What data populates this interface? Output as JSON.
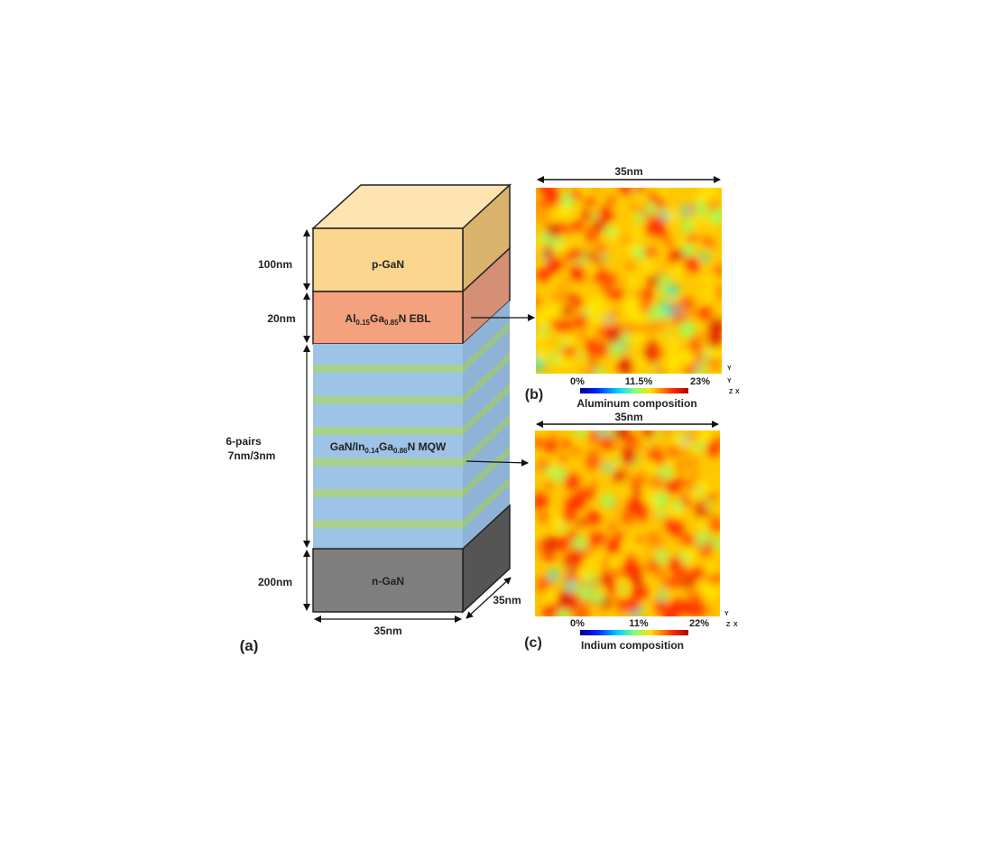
{
  "panel_a": {
    "label": "(a)",
    "layers": [
      {
        "name": "p-GaN",
        "thickness": "100nm",
        "color": "#fcd68e"
      },
      {
        "name_parts": [
          "Al",
          "0.15",
          "Ga",
          "0.85",
          "N EBL"
        ],
        "thickness": "20nm",
        "color": "#f4a27e"
      },
      {
        "name_parts": [
          "GaN/In",
          "0.14",
          "Ga",
          "0.86",
          "N MQW"
        ],
        "thickness_lines": [
          "6-pairs",
          "7nm/3nm"
        ],
        "color": "#9dc3e6",
        "stripe_color": "#a9d18e"
      },
      {
        "name": "n-GaN",
        "thickness": "200nm",
        "color": "#7f7f7f"
      }
    ],
    "width_label": "35nm",
    "depth_label": "35nm"
  },
  "panel_b": {
    "label": "(b)",
    "width_label": "35nm",
    "colorbar": {
      "min": "0%",
      "mid": "11.5%",
      "max": "23%",
      "title": "Aluminum composition"
    },
    "axes": {
      "y": "Y",
      "z": "Z",
      "x": "X"
    }
  },
  "panel_c": {
    "label": "(c)",
    "width_label": "35nm",
    "colorbar": {
      "min": "0%",
      "mid": "11%",
      "max": "22%",
      "title": "Indium composition"
    },
    "axes": {
      "y": "Y",
      "z": "Z",
      "x": "X"
    }
  }
}
